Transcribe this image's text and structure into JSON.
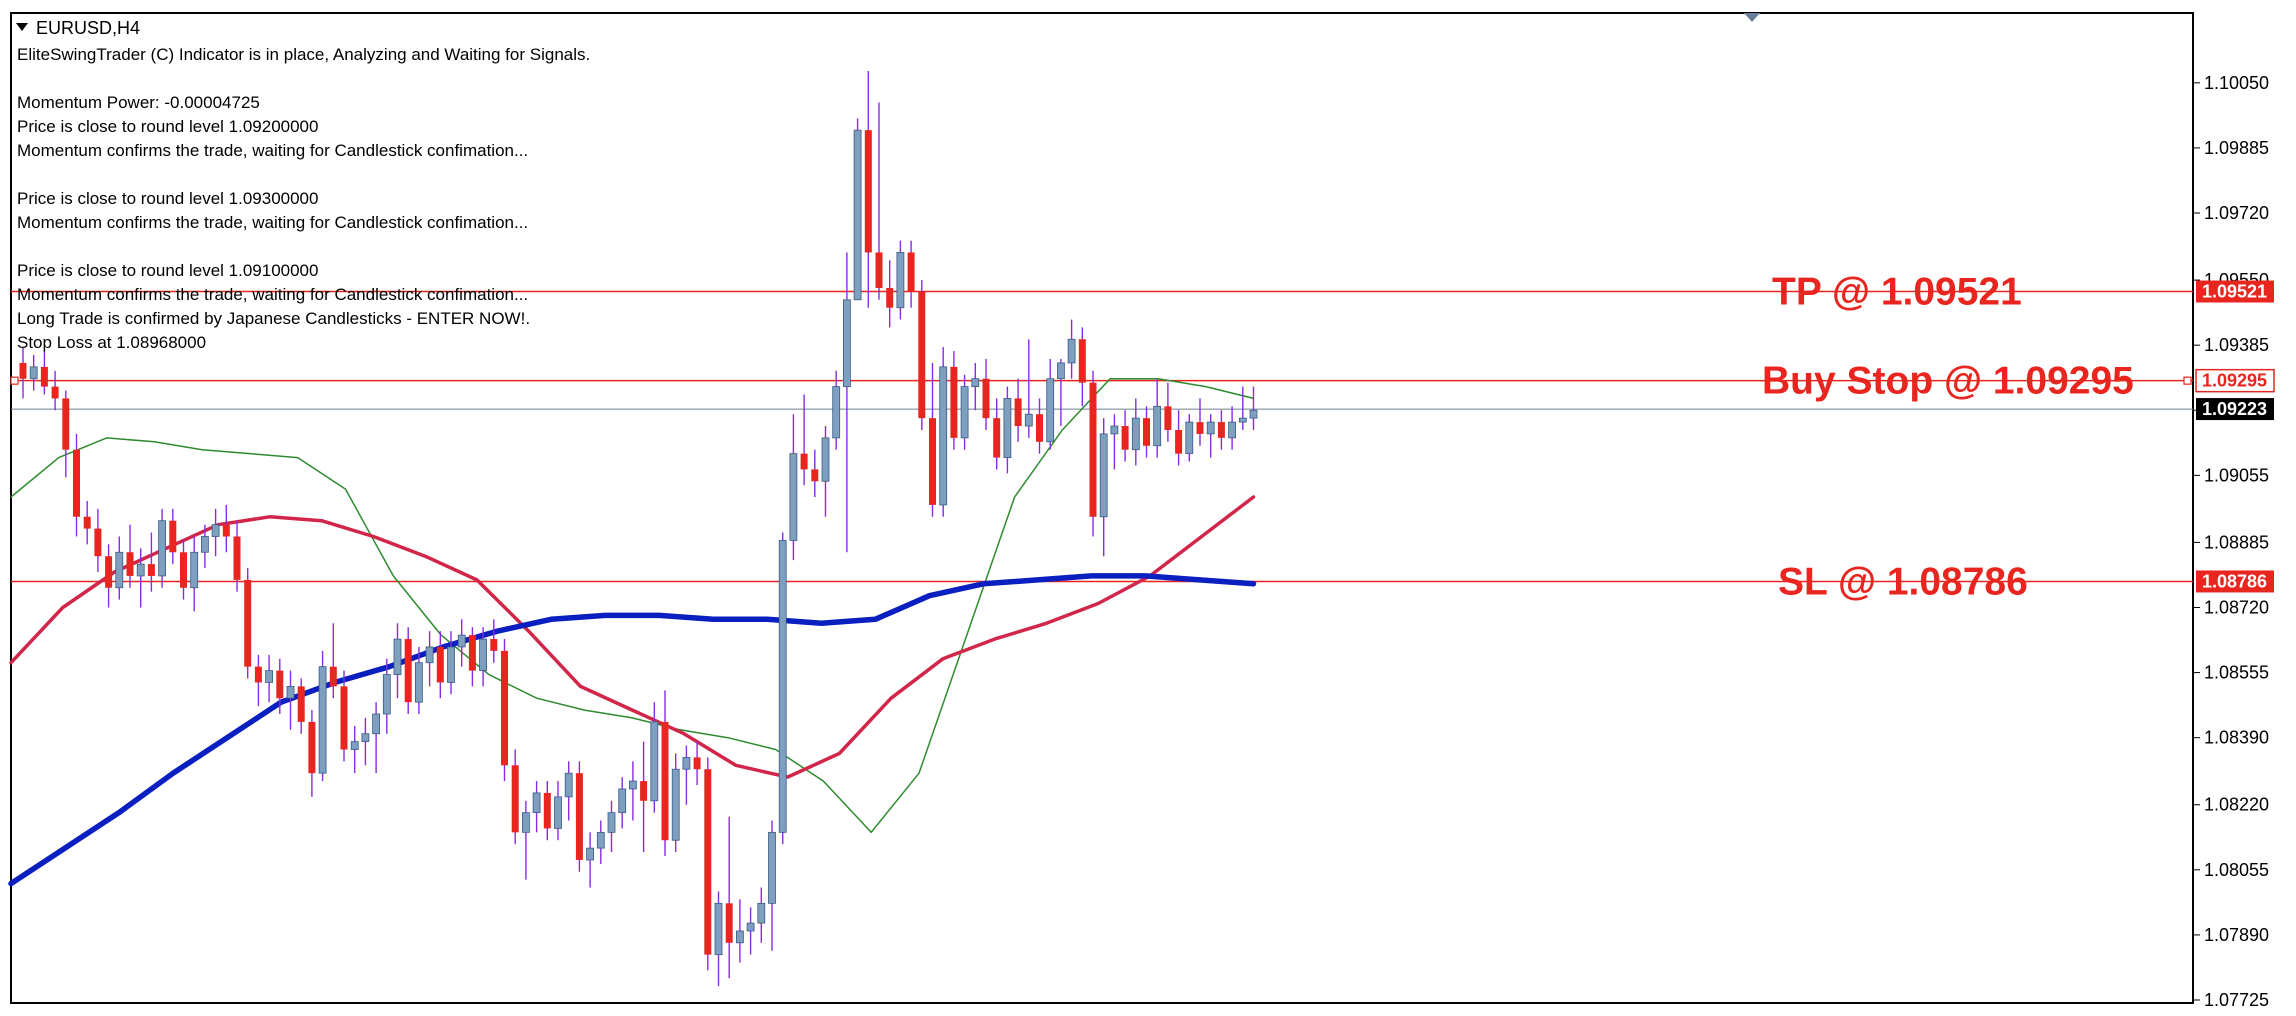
{
  "window": {
    "symbol_title": "EURUSD,H4"
  },
  "indicator_text": [
    "EliteSwingTrader (C) Indicator is in place, Analyzing and Waiting for Signals.",
    "",
    "Momentum Power: -0.00004725",
    "Price is close to round level 1.09200000",
    "Momentum confirms the trade, waiting for Candlestick confimation...",
    "",
    "Price is close to round level 1.09300000",
    "Momentum confirms the trade, waiting for Candlestick confimation...",
    "",
    "Price is close to round level 1.09100000",
    "Momentum confirms the trade, waiting for Candlestick confimation...",
    "Long Trade is confirmed by Japanese Candlesticks - ENTER NOW!.",
    "Stop Loss at 1.08968000"
  ],
  "colors": {
    "bull_candle": "#7f9fbf",
    "bear_candle": "#e8261f",
    "wick": "#8a2be2",
    "level_line": "#e8261f",
    "current_price_line": "#708090",
    "ma_fast": "#2e8b2e",
    "ma_mid": "#d1264a",
    "ma_slow": "#0a1fbf",
    "annotation": "#e8261f"
  },
  "chart_data": {
    "type": "candlestick",
    "symbol": "EURUSD",
    "timeframe": "H4",
    "ylim": [
      1.07725,
      1.1008
    ],
    "y_ticks": [
      "1.10050",
      "1.09885",
      "1.09720",
      "1.09550",
      "1.09385",
      "1.09220",
      "1.09055",
      "1.08885",
      "1.08720",
      "1.08555",
      "1.08390",
      "1.08220",
      "1.08055",
      "1.07890",
      "1.07725"
    ],
    "levels": [
      {
        "name": "TP",
        "label": "TP @ 1.09521",
        "price": 1.09521,
        "box_text": "1.09521",
        "box_style": "red"
      },
      {
        "name": "Buy Stop",
        "label": "Buy Stop @ 1.09295",
        "price": 1.09295,
        "box_text": "1.09295",
        "box_style": "outline"
      },
      {
        "name": "SL",
        "label": "SL @ 1.08786",
        "price": 1.08786,
        "box_text": "1.08786",
        "box_style": "red"
      }
    ],
    "current_price": {
      "price": 1.09223,
      "box_text": "1.09223"
    },
    "candles": [
      [
        1.0934,
        1.0938,
        1.0925,
        1.093
      ],
      [
        1.093,
        1.0936,
        1.0927,
        1.0933
      ],
      [
        1.0933,
        1.0937,
        1.0926,
        1.0928
      ],
      [
        1.0928,
        1.0932,
        1.0922,
        1.0925
      ],
      [
        1.0925,
        1.0927,
        1.0905,
        1.0912
      ],
      [
        1.0912,
        1.0916,
        1.089,
        1.0895
      ],
      [
        1.0895,
        1.0899,
        1.0888,
        1.0892
      ],
      [
        1.0892,
        1.0897,
        1.0881,
        1.0885
      ],
      [
        1.0885,
        1.0888,
        1.0872,
        1.0877
      ],
      [
        1.0877,
        1.089,
        1.0874,
        1.0886
      ],
      [
        1.0886,
        1.0893,
        1.0877,
        1.088
      ],
      [
        1.088,
        1.0887,
        1.0872,
        1.0883
      ],
      [
        1.0883,
        1.0891,
        1.0876,
        1.088
      ],
      [
        1.088,
        1.0897,
        1.0877,
        1.0894
      ],
      [
        1.0894,
        1.0897,
        1.0883,
        1.0886
      ],
      [
        1.0886,
        1.0889,
        1.0874,
        1.0877
      ],
      [
        1.0877,
        1.089,
        1.0871,
        1.0886
      ],
      [
        1.0886,
        1.0893,
        1.0882,
        1.089
      ],
      [
        1.089,
        1.0897,
        1.0885,
        1.0893
      ],
      [
        1.0893,
        1.0898,
        1.0886,
        1.089
      ],
      [
        1.089,
        1.0894,
        1.0876,
        1.0879
      ],
      [
        1.0879,
        1.0882,
        1.0854,
        1.0857
      ],
      [
        1.0857,
        1.086,
        1.0847,
        1.0853
      ],
      [
        1.0853,
        1.086,
        1.0848,
        1.0856
      ],
      [
        1.0856,
        1.0859,
        1.0845,
        1.0849
      ],
      [
        1.0849,
        1.0856,
        1.0841,
        1.0852
      ],
      [
        1.0852,
        1.0854,
        1.084,
        1.0843
      ],
      [
        1.0843,
        1.0846,
        1.0824,
        1.083
      ],
      [
        1.083,
        1.0861,
        1.0828,
        1.0857
      ],
      [
        1.0857,
        1.0868,
        1.0849,
        1.0852
      ],
      [
        1.0852,
        1.0856,
        1.0833,
        1.0836
      ],
      [
        1.0836,
        1.0842,
        1.083,
        1.0838
      ],
      [
        1.0838,
        1.0844,
        1.0832,
        1.084
      ],
      [
        1.084,
        1.0848,
        1.083,
        1.0845
      ],
      [
        1.0845,
        1.0859,
        1.084,
        1.0855
      ],
      [
        1.0855,
        1.0868,
        1.0849,
        1.0864
      ],
      [
        1.0864,
        1.0867,
        1.0845,
        1.0848
      ],
      [
        1.0848,
        1.0862,
        1.0845,
        1.0858
      ],
      [
        1.0858,
        1.0866,
        1.0852,
        1.0862
      ],
      [
        1.0862,
        1.0866,
        1.0849,
        1.0853
      ],
      [
        1.0853,
        1.0866,
        1.085,
        1.0862
      ],
      [
        1.0862,
        1.0869,
        1.0857,
        1.0865
      ],
      [
        1.0865,
        1.0867,
        1.0852,
        1.0856
      ],
      [
        1.0856,
        1.0867,
        1.0852,
        1.0864
      ],
      [
        1.0864,
        1.0869,
        1.0858,
        1.0861
      ],
      [
        1.0861,
        1.0864,
        1.0828,
        1.0832
      ],
      [
        1.0832,
        1.0836,
        1.0812,
        1.0815
      ],
      [
        1.0815,
        1.0823,
        1.0803,
        1.082
      ],
      [
        1.082,
        1.0828,
        1.0815,
        1.0825
      ],
      [
        1.0825,
        1.0828,
        1.0813,
        1.0816
      ],
      [
        1.0816,
        1.0828,
        1.0813,
        1.0824
      ],
      [
        1.0824,
        1.0833,
        1.0818,
        1.083
      ],
      [
        1.083,
        1.0833,
        1.0805,
        1.0808
      ],
      [
        1.0808,
        1.0815,
        1.0801,
        1.0811
      ],
      [
        1.0811,
        1.0818,
        1.0807,
        1.0815
      ],
      [
        1.0815,
        1.0823,
        1.081,
        1.082
      ],
      [
        1.082,
        1.0829,
        1.0816,
        1.0826
      ],
      [
        1.0826,
        1.0833,
        1.0818,
        1.0828
      ],
      [
        1.0828,
        1.0838,
        1.081,
        1.0823
      ],
      [
        1.0823,
        1.0848,
        1.082,
        1.0843
      ],
      [
        1.0843,
        1.0851,
        1.0809,
        1.0813
      ],
      [
        1.0813,
        1.0835,
        1.081,
        1.0831
      ],
      [
        1.0831,
        1.0837,
        1.0822,
        1.0834
      ],
      [
        1.0834,
        1.0838,
        1.0827,
        1.0831
      ],
      [
        1.0831,
        1.0834,
        1.078,
        1.0784
      ],
      [
        1.0784,
        1.08,
        1.0776,
        1.0797
      ],
      [
        1.0797,
        1.0819,
        1.0778,
        1.0787
      ],
      [
        1.0787,
        1.0798,
        1.0782,
        1.079
      ],
      [
        1.079,
        1.0796,
        1.0784,
        1.0792
      ],
      [
        1.0792,
        1.0801,
        1.0787,
        1.0797
      ],
      [
        1.0797,
        1.0818,
        1.0785,
        1.0815
      ],
      [
        1.0815,
        1.0891,
        1.0812,
        1.0889
      ],
      [
        1.0889,
        1.0921,
        1.0884,
        1.0911
      ],
      [
        1.0911,
        1.0926,
        1.0903,
        1.0907
      ],
      [
        1.0907,
        1.0912,
        1.09,
        1.0904
      ],
      [
        1.0904,
        1.0918,
        1.0895,
        1.0915
      ],
      [
        1.0915,
        1.0932,
        1.0912,
        1.0928
      ],
      [
        1.0928,
        1.0962,
        1.0886,
        1.095
      ],
      [
        1.095,
        1.0996,
        1.095,
        1.0993
      ],
      [
        1.0993,
        1.1008,
        1.0948,
        1.0962
      ],
      [
        1.0962,
        1.1,
        1.095,
        1.0953
      ],
      [
        1.0953,
        1.096,
        1.0943,
        1.0948
      ],
      [
        1.0948,
        1.0965,
        1.0945,
        1.0962
      ],
      [
        1.0962,
        1.0965,
        1.0948,
        1.0952
      ],
      [
        1.0952,
        1.0955,
        1.0917,
        1.092
      ],
      [
        1.092,
        1.0934,
        1.0895,
        1.0898
      ],
      [
        1.0898,
        1.0938,
        1.0895,
        1.0933
      ],
      [
        1.0933,
        1.0937,
        1.0912,
        1.0915
      ],
      [
        1.0915,
        1.0931,
        1.0912,
        1.0928
      ],
      [
        1.0928,
        1.0934,
        1.0922,
        1.093
      ],
      [
        1.093,
        1.0935,
        1.0917,
        1.092
      ],
      [
        1.092,
        1.0925,
        1.0907,
        1.091
      ],
      [
        1.091,
        1.0928,
        1.0906,
        1.0925
      ],
      [
        1.0925,
        1.093,
        1.0914,
        1.0918
      ],
      [
        1.0918,
        1.094,
        1.0915,
        1.0921
      ],
      [
        1.0921,
        1.0925,
        1.0911,
        1.0914
      ],
      [
        1.0914,
        1.0935,
        1.0912,
        1.093
      ],
      [
        1.093,
        1.0935,
        1.0918,
        1.0934
      ],
      [
        1.0934,
        1.0945,
        1.093,
        1.094
      ],
      [
        1.094,
        1.0943,
        1.0923,
        1.0929
      ],
      [
        1.0929,
        1.0932,
        1.089,
        1.0895
      ],
      [
        1.0895,
        1.092,
        1.0885,
        1.0916
      ],
      [
        1.0916,
        1.0921,
        1.0907,
        1.0918
      ],
      [
        1.0918,
        1.0922,
        1.0909,
        1.0912
      ],
      [
        1.0912,
        1.0925,
        1.0908,
        1.092
      ],
      [
        1.092,
        1.0923,
        1.091,
        1.0913
      ],
      [
        1.0913,
        1.093,
        1.091,
        1.0923
      ],
      [
        1.0923,
        1.0929,
        1.0914,
        1.0917
      ],
      [
        1.0917,
        1.0922,
        1.0908,
        1.0911
      ],
      [
        1.0911,
        1.0921,
        1.0909,
        1.0919
      ],
      [
        1.0919,
        1.0925,
        1.0913,
        1.0916
      ],
      [
        1.0916,
        1.0921,
        1.091,
        1.0919
      ],
      [
        1.0919,
        1.0922,
        1.0912,
        1.0915
      ],
      [
        1.0915,
        1.0923,
        1.0912,
        1.0919
      ],
      [
        1.0919,
        1.0928,
        1.0917,
        1.092
      ],
      [
        1.092,
        1.0928,
        1.0917,
        1.0922
      ]
    ],
    "ma_series": [
      {
        "key": "ma_fast",
        "values": [
          1.09,
          1.091,
          1.0915,
          1.0914,
          1.0912,
          1.0911,
          1.091,
          1.0902,
          1.088,
          1.0865,
          1.0855,
          1.0849,
          1.0846,
          1.0844,
          1.0841,
          1.0839,
          1.0836,
          1.0828,
          1.0815,
          1.083,
          1.0865,
          1.09,
          1.0917,
          1.093,
          1.093,
          1.0928,
          1.0925
        ]
      },
      {
        "key": "ma_mid",
        "values": [
          1.0858,
          1.0872,
          1.0881,
          1.0887,
          1.0893,
          1.0895,
          1.0894,
          1.089,
          1.0885,
          1.0879,
          1.0866,
          1.0852,
          1.0846,
          1.084,
          1.0832,
          1.0829,
          1.0835,
          1.0849,
          1.0859,
          1.0864,
          1.0868,
          1.0873,
          1.088,
          1.089,
          1.09
        ]
      },
      {
        "key": "ma_slow",
        "values": [
          1.0802,
          1.0811,
          1.082,
          1.083,
          1.0839,
          1.0848,
          1.0853,
          1.0857,
          1.0862,
          1.0866,
          1.0869,
          1.087,
          1.087,
          1.0869,
          1.0869,
          1.0868,
          1.0869,
          1.0875,
          1.0878,
          1.0879,
          1.088,
          1.088,
          1.0879,
          1.0878
        ]
      }
    ]
  }
}
